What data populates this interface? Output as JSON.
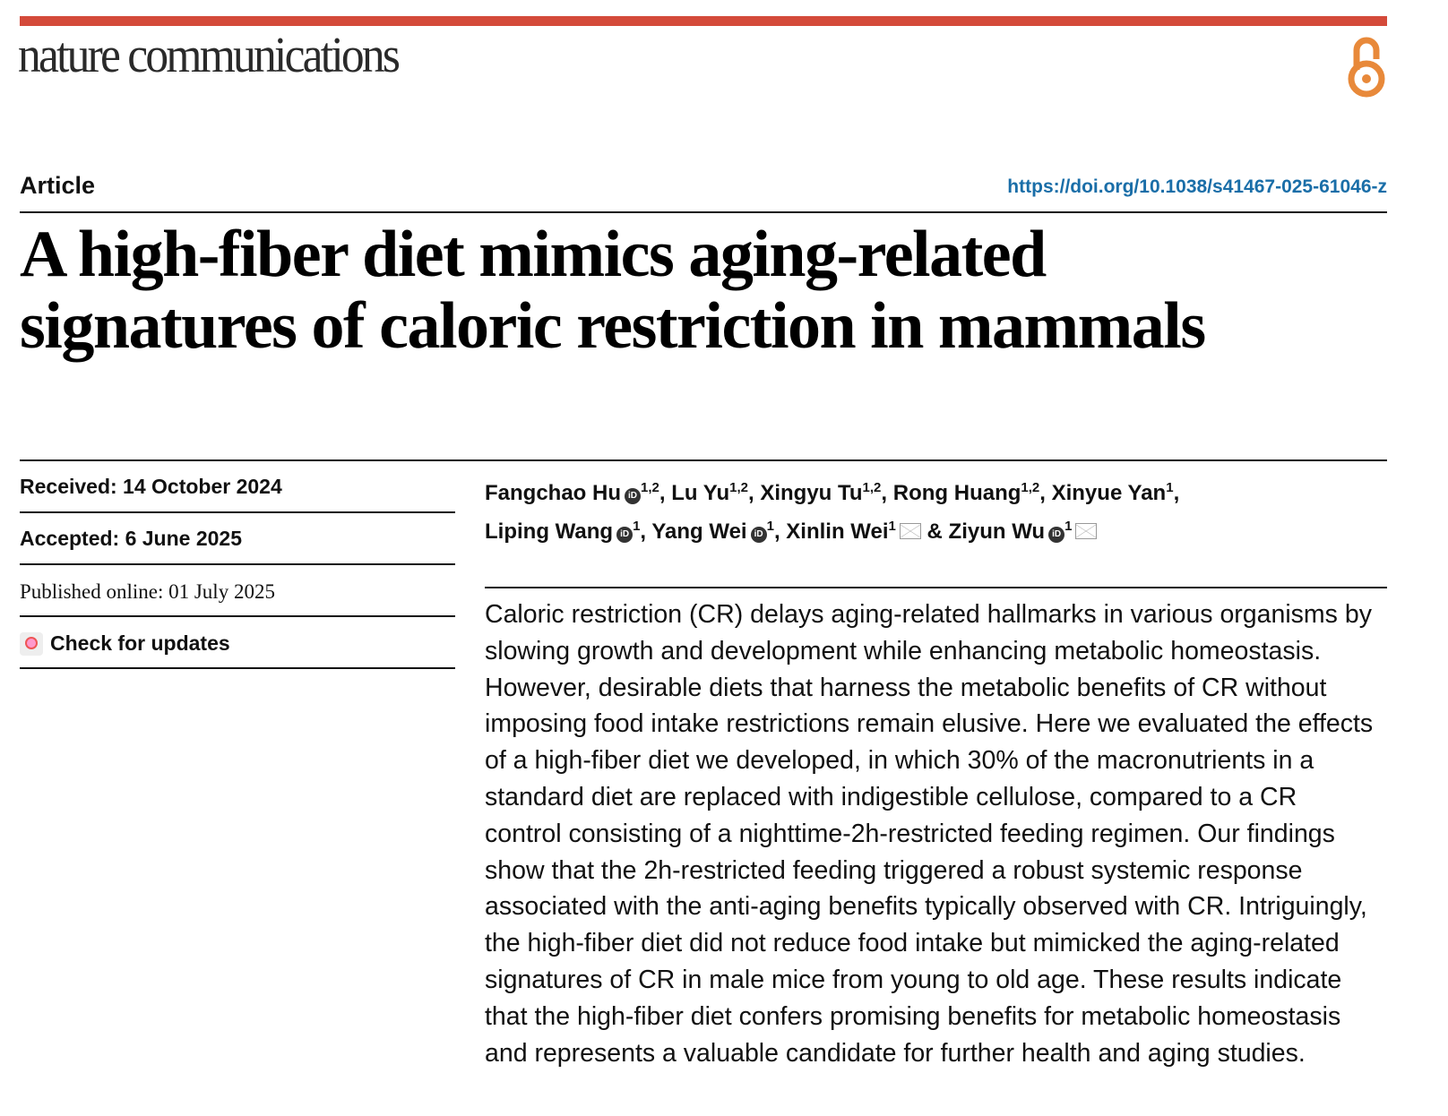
{
  "header": {
    "journal": "nature communications",
    "open_access_icon": "open-access-icon",
    "accent": "#d44a3a"
  },
  "article_type": "Article",
  "doi": "https://doi.org/10.1038/s41467-025-61046-z",
  "title_lines": [
    "A high-fiber diet mimics aging-related",
    "signatures of caloric restriction in mammals"
  ],
  "dates": {
    "received": "Received: 14 October 2024",
    "accepted": "Accepted: 6 June 2025",
    "published": "Published online: 01 July 2025"
  },
  "check_updates": "Check for updates",
  "authors": [
    {
      "name": "Fangchao Hu",
      "aff": "1,2",
      "orcid": true
    },
    {
      "name": "Lu Yu",
      "aff": "1,2"
    },
    {
      "name": "Xingyu Tu",
      "aff": "1,2"
    },
    {
      "name": "Rong Huang",
      "aff": "1,2"
    },
    {
      "name": "Xinyue Yan",
      "aff": "1"
    },
    {
      "name": "Liping Wang",
      "aff": "1",
      "orcid": true
    },
    {
      "name": "Yang Wei",
      "aff": "1",
      "orcid": true
    },
    {
      "name": "Xinlin Wei",
      "aff": "1",
      "mail": true
    },
    {
      "name": "Ziyun Wu",
      "aff": "1",
      "orcid": true,
      "mail": true
    }
  ],
  "abstract_lines": [
    "Caloric restriction (CR) delays aging-related hallmarks in various organisms by",
    "slowing growth and development while enhancing metabolic homeostasis.",
    "However, desirable diets that harness the metabolic benefits of CR without",
    "imposing food intake restrictions remain elusive. Here we evaluated the effects",
    "of a high-fiber diet we developed, in which 30% of the macronutrients in a",
    "standard diet are replaced with indigestible cellulose, compared to a CR",
    "control consisting of a nighttime-2h-restricted feeding regimen. Our findings",
    "show that the 2h-restricted feeding triggered a robust systemic response",
    "associated with the anti-aging benefits typically observed with CR. Intriguingly,",
    "the high-fiber diet did not reduce food intake but mimicked the aging-related",
    "signatures of CR in male mice from young to old age. These results indicate",
    "that the high-fiber diet confers promising benefits for metabolic homeostasis",
    "and represents a valuable candidate for further health and aging studies."
  ]
}
